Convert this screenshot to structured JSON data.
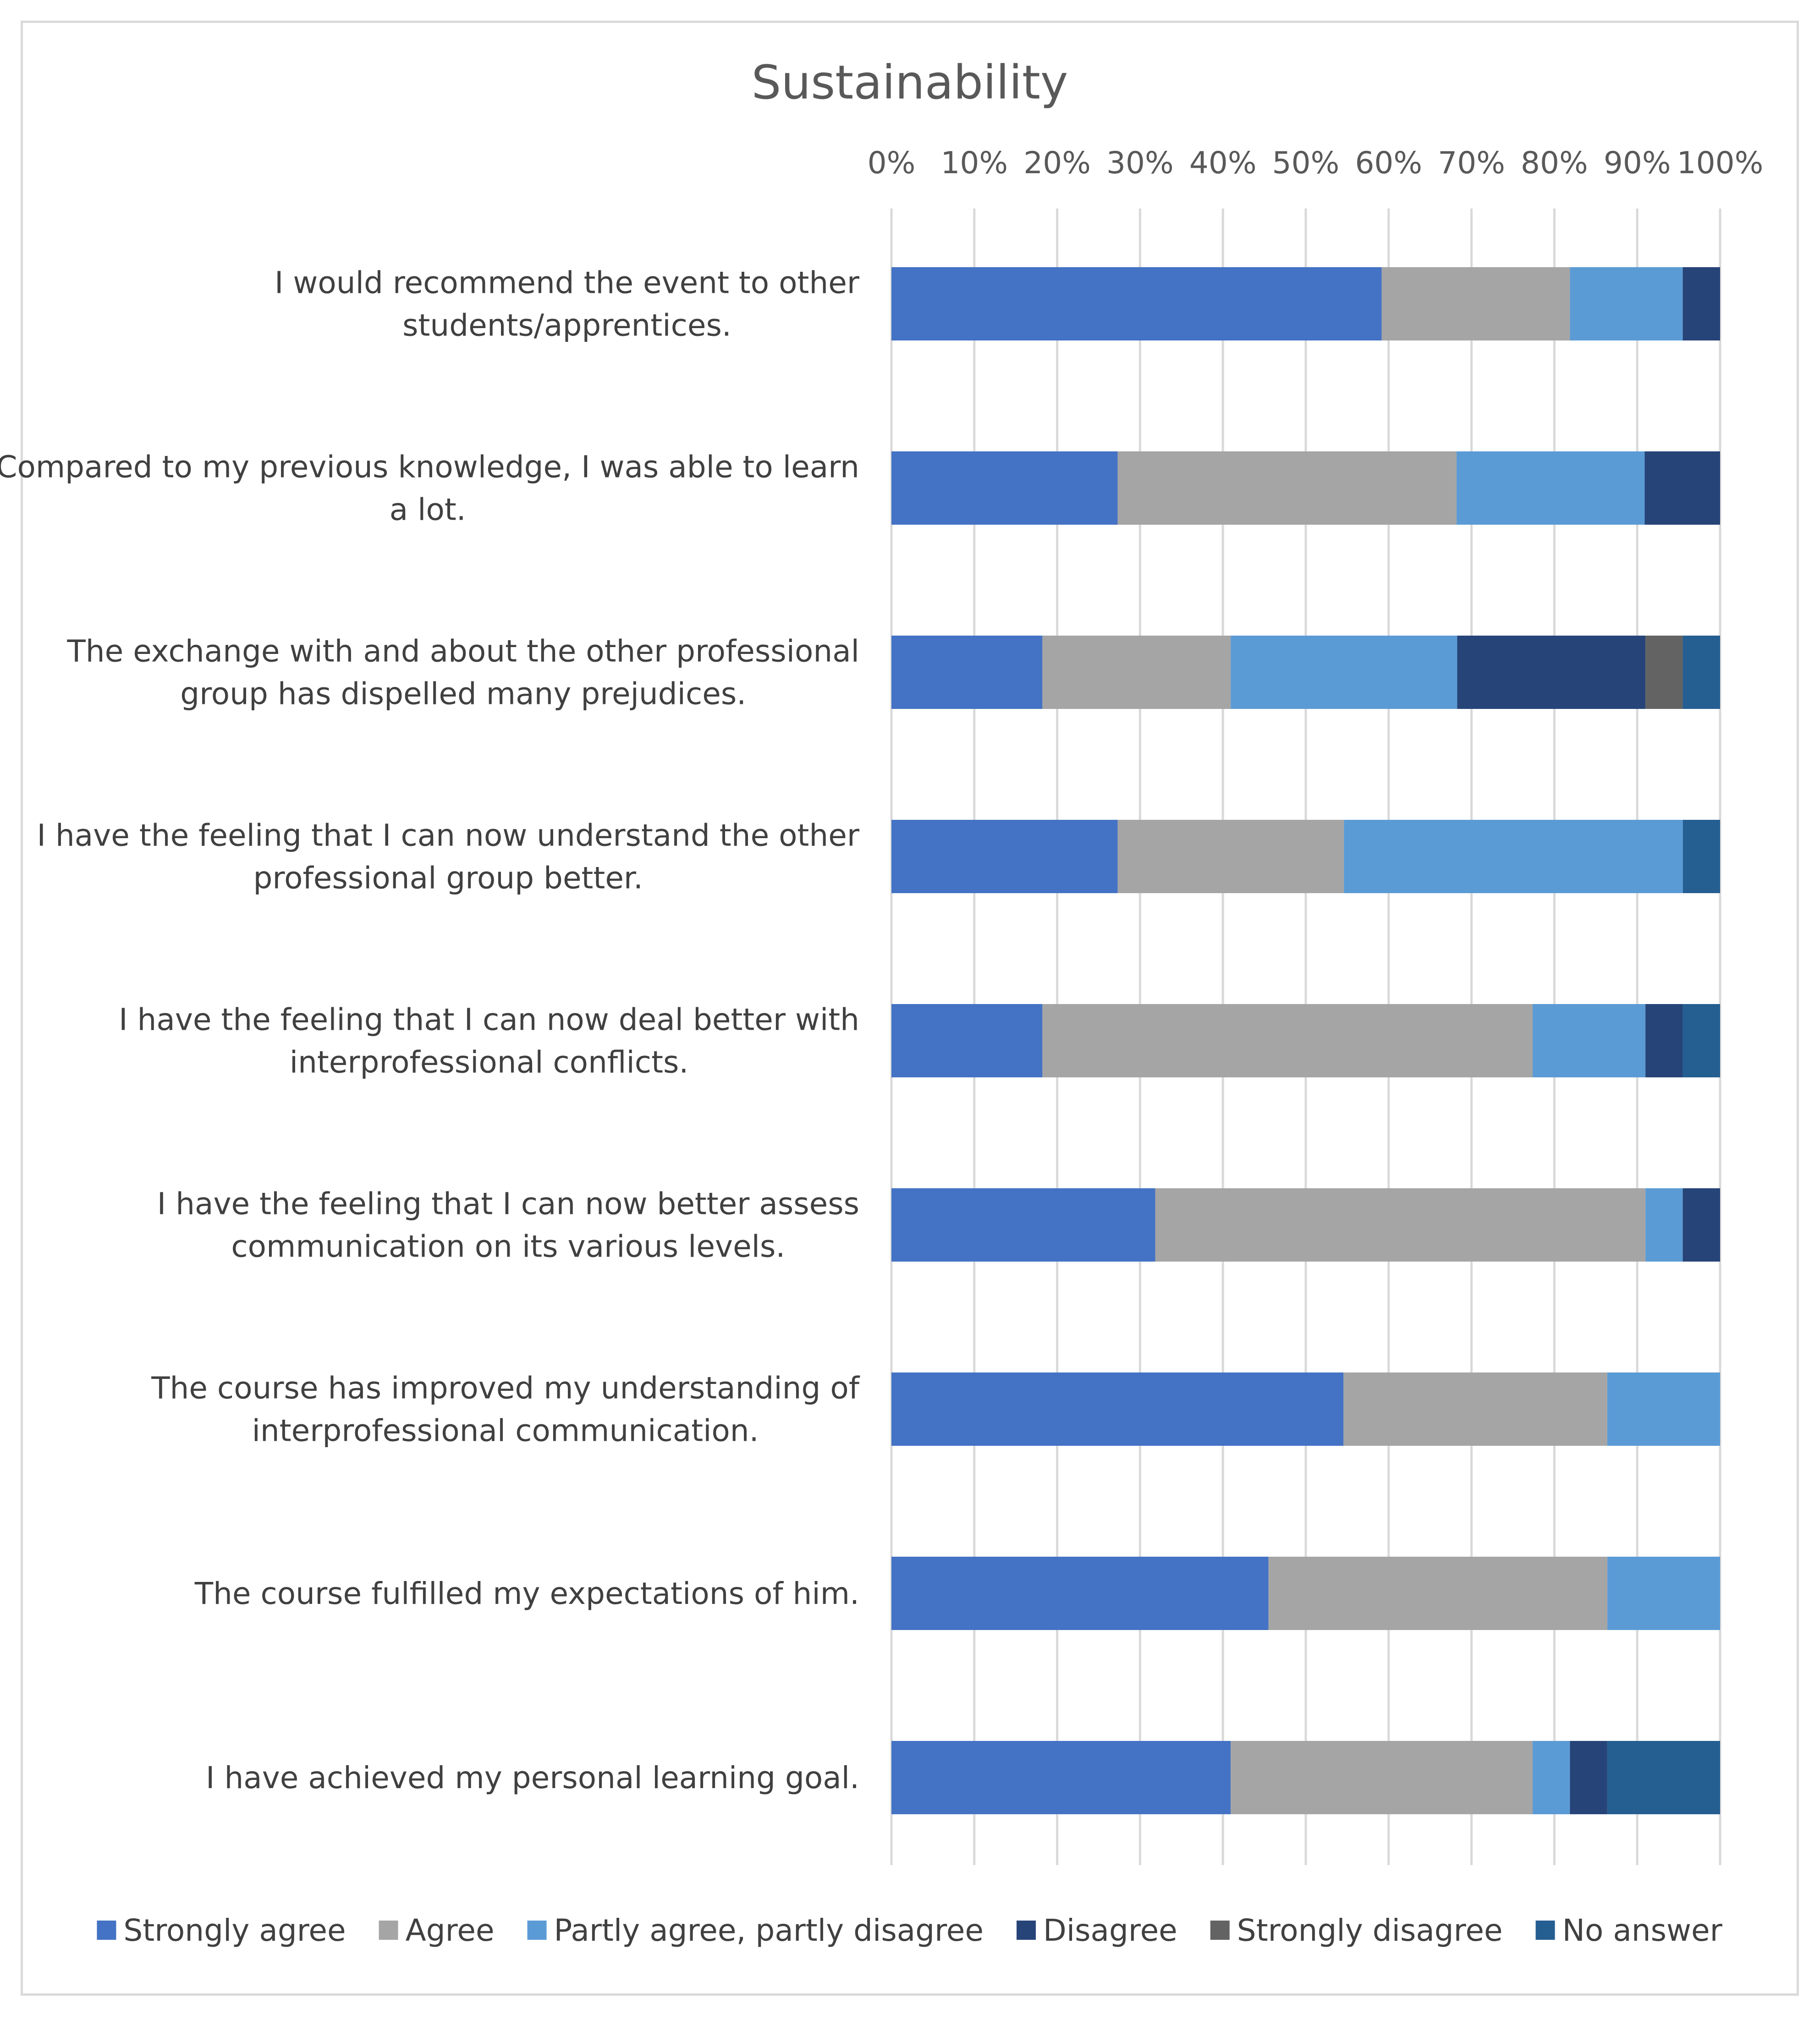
{
  "chart_data": {
    "type": "bar",
    "orientation": "horizontal",
    "stacked": "percent",
    "title": "Sustainability",
    "xlim": [
      0,
      100
    ],
    "x_ticks": [
      "0%",
      "10%",
      "20%",
      "30%",
      "40%",
      "50%",
      "60%",
      "70%",
      "80%",
      "90%",
      "100%"
    ],
    "grid": true,
    "legend_position": "bottom",
    "categories": [
      [
        "I would recommend the event to other",
        "students/apprentices."
      ],
      [
        "Compared to my previous knowledge, I was able to learn",
        "a lot."
      ],
      [
        "The exchange with and about the other professional",
        "group has dispelled many prejudices."
      ],
      [
        "I have the feeling that I can now understand the other",
        "professional group better."
      ],
      [
        "I have the feeling that I can now deal better with",
        "interprofessional conflicts."
      ],
      [
        "I have the feeling that I can now better assess",
        "communication on its various levels."
      ],
      [
        "The course has improved my understanding of",
        "interprofessional communication."
      ],
      [
        "The course fulfilled my expectations of him."
      ],
      [
        "I have achieved my personal learning goal."
      ]
    ],
    "series": [
      {
        "name": "Strongly agree",
        "color": "#4472c4",
        "values": [
          59.1,
          27.3,
          18.2,
          27.3,
          18.2,
          31.8,
          54.5,
          45.5,
          40.9
        ]
      },
      {
        "name": "Agree",
        "color": "#a5a5a5",
        "values": [
          22.7,
          40.9,
          22.7,
          27.3,
          59.1,
          59.1,
          31.8,
          40.9,
          36.4
        ]
      },
      {
        "name": "Partly agree, partly disagree",
        "color": "#5b9bd5",
        "values": [
          13.6,
          22.7,
          27.3,
          40.9,
          13.6,
          4.5,
          13.6,
          13.6,
          4.5
        ]
      },
      {
        "name": "Disagree",
        "color": "#264478",
        "values": [
          4.5,
          9.1,
          22.7,
          0,
          4.5,
          4.5,
          0,
          0,
          4.5
        ]
      },
      {
        "name": "Strongly disagree",
        "color": "#636363",
        "values": [
          0,
          0,
          4.5,
          0,
          0,
          0,
          0,
          0,
          0
        ]
      },
      {
        "name": "No answer",
        "color": "#255e91",
        "values": [
          0,
          0,
          4.5,
          4.5,
          4.5,
          0,
          0,
          0,
          13.6
        ]
      }
    ]
  }
}
